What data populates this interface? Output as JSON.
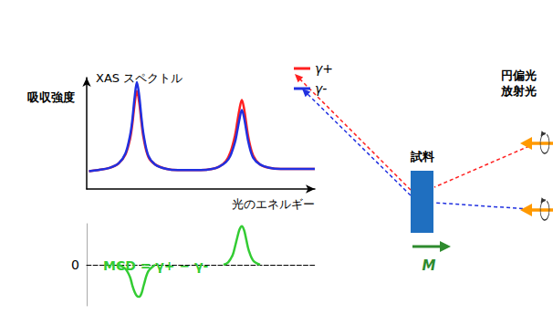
{
  "chart_data": [
    {
      "type": "line",
      "title": "XAS スペクトル",
      "y_label": "吸収強度",
      "x_label": "光のエネルギー",
      "x": [
        1,
        5,
        10,
        14,
        17,
        19,
        20,
        21,
        22,
        23,
        24,
        25,
        27,
        30,
        35,
        40,
        45,
        50,
        55,
        58,
        61,
        63,
        65,
        66,
        67,
        68,
        69,
        70,
        71,
        73,
        76,
        80,
        85,
        90,
        95,
        100
      ],
      "series": [
        {
          "name": "γ+",
          "color": "#ff2020",
          "values": [
            16,
            17,
            19,
            23,
            31,
            45,
            58,
            76,
            88,
            78,
            60,
            45,
            29,
            22,
            18,
            17,
            17,
            17,
            18,
            20,
            25,
            33,
            48,
            60,
            72,
            80,
            72,
            58,
            45,
            30,
            22,
            19,
            18,
            18,
            18,
            18
          ]
        },
        {
          "name": "γ-",
          "color": "#2030e0",
          "values": [
            16,
            17,
            19,
            23,
            32,
            48,
            62,
            82,
            96,
            84,
            64,
            48,
            30,
            22,
            18,
            17,
            17,
            17,
            18,
            20,
            24,
            30,
            42,
            52,
            63,
            71,
            64,
            52,
            41,
            28,
            22,
            19,
            18,
            18,
            18,
            18
          ]
        }
      ],
      "xlim": [
        0,
        100
      ],
      "ylim": [
        0,
        100
      ],
      "tick_labels": false,
      "legend": "upper right"
    },
    {
      "type": "line",
      "title": "MCD = γ+ − γ-",
      "x": [
        0,
        14,
        17,
        19,
        20,
        21,
        22,
        23,
        24,
        25,
        27,
        30,
        45,
        60,
        62,
        64,
        65,
        66,
        67,
        68,
        69,
        70,
        71,
        73,
        76,
        100
      ],
      "series": [
        {
          "color": "#33cc33",
          "values": [
            null,
            0,
            -5,
            -15,
            -25,
            -33,
            -38,
            -39,
            -35,
            -25,
            -8,
            0,
            null,
            0,
            3,
            12,
            22,
            33,
            43,
            47,
            42,
            30,
            18,
            5,
            0,
            null
          ]
        }
      ],
      "xlim": [
        0,
        100
      ],
      "ylim": [
        -50,
        50
      ],
      "yticks": [
        0
      ],
      "tick_labels": "y"
    }
  ],
  "diagram": {
    "sample": "試料",
    "magnetization": "M",
    "light_source": [
      "円偏光",
      "放射光"
    ]
  }
}
